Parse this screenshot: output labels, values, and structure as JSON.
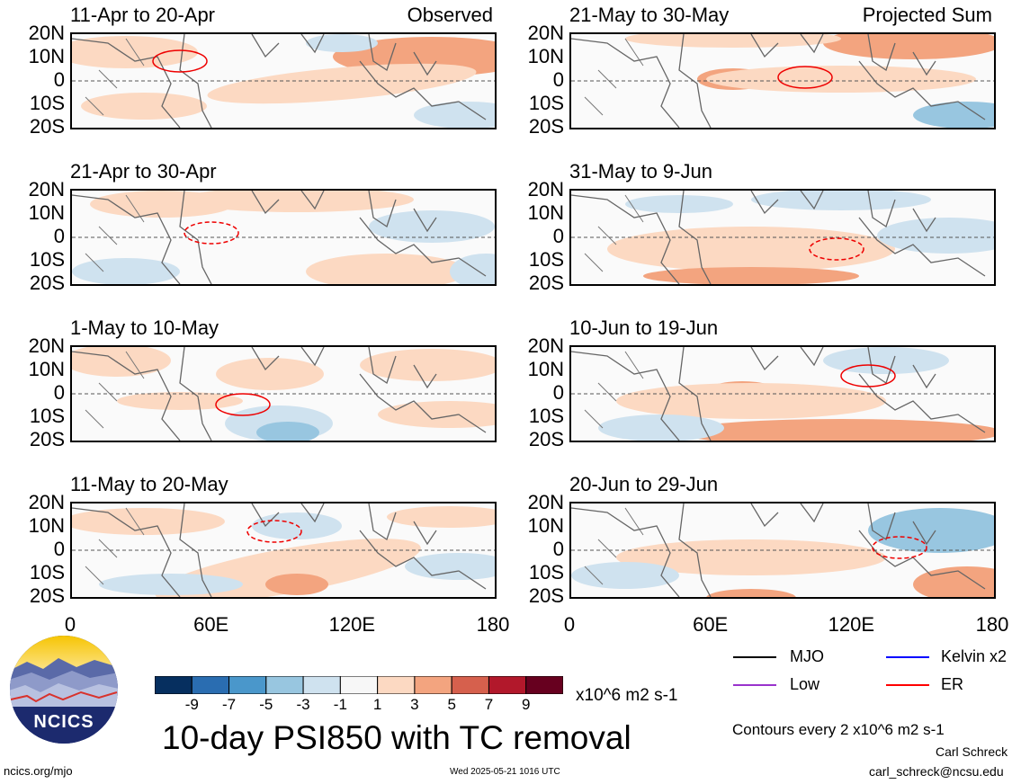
{
  "panels": [
    {
      "title": "11-Apr to 20-Apr",
      "tag": "Observed"
    },
    {
      "title": "21-Apr to 30-Apr",
      "tag": ""
    },
    {
      "title": "1-May to 10-May",
      "tag": ""
    },
    {
      "title": "11-May to 20-May",
      "tag": ""
    },
    {
      "title": "21-May to 30-May",
      "tag": "Projected Sum"
    },
    {
      "title": "31-May to 9-Jun",
      "tag": ""
    },
    {
      "title": "10-Jun to 19-Jun",
      "tag": ""
    },
    {
      "title": "20-Jun to 29-Jun",
      "tag": ""
    }
  ],
  "y_ticks": [
    "20N",
    "10N",
    "0",
    "10S",
    "20S"
  ],
  "x_ticks": [
    "0",
    "60E",
    "120E",
    "180"
  ],
  "colorbar": {
    "colors": [
      "#062f5f",
      "#2a6db1",
      "#4a97cb",
      "#98c6e0",
      "#cfe2ef",
      "#f7f7f7",
      "#fcd9c2",
      "#f3a47f",
      "#d6604d",
      "#b2182b",
      "#67001f"
    ],
    "labels": [
      "-9",
      "-7",
      "-5",
      "-3",
      "-1",
      "1",
      "3",
      "5",
      "7",
      "9"
    ],
    "units": "x10^6 m2 s-1"
  },
  "legend": {
    "items": [
      {
        "label": "MJO",
        "color": "#000000"
      },
      {
        "label": "Kelvin x2",
        "color": "#0000ff"
      },
      {
        "label": "Low",
        "color": "#9933cc"
      },
      {
        "label": "ER",
        "color": "#ff0000"
      }
    ],
    "contours_note": "Contours every 2 x10^6 m2 s-1"
  },
  "logo": {
    "text": "NCICS"
  },
  "main_title": "10-day PSI850 with TC removal",
  "footer": {
    "url": "ncics.org/mjo",
    "timestamp": "Wed 2025-05-21 1016 UTC",
    "author": "Carl Schreck",
    "email": "carl_schreck@ncsu.edu"
  }
}
